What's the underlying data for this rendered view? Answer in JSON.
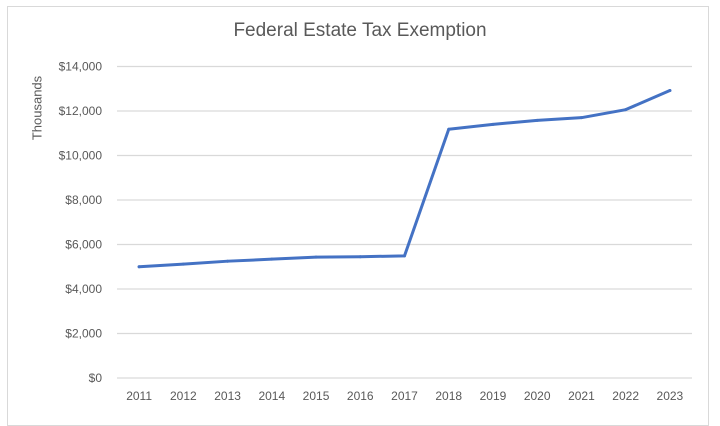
{
  "chart_data": {
    "type": "line",
    "title": "Federal Estate Tax Exemption",
    "xlabel": "",
    "ylabel": "Thousands",
    "categories": [
      "2011",
      "2012",
      "2013",
      "2014",
      "2015",
      "2016",
      "2017",
      "2018",
      "2019",
      "2020",
      "2021",
      "2022",
      "2023"
    ],
    "series": [
      {
        "values": [
          5000,
          5120,
          5250,
          5340,
          5430,
          5450,
          5490,
          11180,
          11400,
          11580,
          11700,
          12060,
          12920
        ],
        "color": "#4472c4"
      }
    ],
    "ylim": [
      0,
      14000
    ],
    "yticks": [
      0,
      2000,
      4000,
      6000,
      8000,
      10000,
      12000,
      14000
    ],
    "ytick_labels": [
      "$0",
      "$2,000",
      "$4,000",
      "$6,000",
      "$8,000",
      "$10,000",
      "$12,000",
      "$14,000"
    ],
    "grid": true,
    "legend": "none",
    "gridline_color": "#d9d9d9"
  }
}
